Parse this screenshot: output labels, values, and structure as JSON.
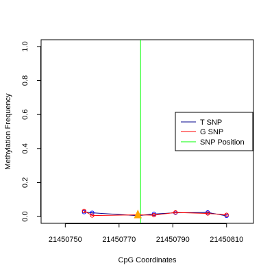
{
  "chart_data": {
    "type": "line",
    "xlabel": "CpG Coordinates",
    "ylabel": "Methylation Frequency",
    "xlim": [
      21450741,
      21450820
    ],
    "ylim": [
      -0.04,
      1.04
    ],
    "x_ticks": [
      21450750,
      21450770,
      21450790,
      21450810
    ],
    "y_ticks": [
      0.0,
      0.2,
      0.4,
      0.6,
      0.8,
      1.0
    ],
    "x_tick_labels": [
      "21450750",
      "21450770",
      "21450790",
      "21450810"
    ],
    "y_tick_labels": [
      "0.0",
      "0.2",
      "0.4",
      "0.6",
      "0.8",
      "1.0"
    ],
    "grid": false,
    "legend_position": "right",
    "series": [
      {
        "name": "T SNP",
        "color": "#00008b",
        "x": [
          21450757,
          21450760,
          21450777,
          21450783,
          21450791,
          21450803,
          21450810
        ],
        "y": [
          0.026,
          0.022,
          0.005,
          0.015,
          0.022,
          0.024,
          0.004
        ]
      },
      {
        "name": "G SNP",
        "color": "#ff0000",
        "x": [
          21450757,
          21450760,
          21450777,
          21450783,
          21450791,
          21450803,
          21450810
        ],
        "y": [
          0.033,
          0.006,
          0.01,
          0.008,
          0.024,
          0.018,
          0.01
        ]
      },
      {
        "name": "SNP Position",
        "color": "#00ff00",
        "x_position": 21450778
      }
    ],
    "marker": {
      "shape": "triangle",
      "color": "#ffa500",
      "x": 21450777,
      "y": 0.0
    }
  }
}
